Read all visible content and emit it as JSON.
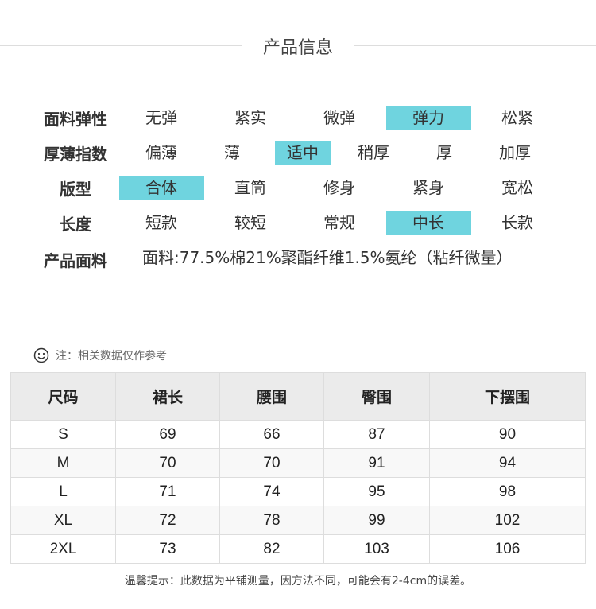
{
  "title": "产品信息",
  "attributes": [
    {
      "label": "面料弹性",
      "options": [
        "无弹",
        "紧实",
        "微弹",
        "弹力",
        "松紧"
      ],
      "selected": 3
    },
    {
      "label": "厚薄指数",
      "options": [
        "偏薄",
        "薄",
        "适中",
        "稍厚",
        "厚",
        "加厚"
      ],
      "selected": 2
    },
    {
      "label": "版型",
      "options": [
        "合体",
        "直筒",
        "修身",
        "紧身",
        "宽松"
      ],
      "selected": 0
    },
    {
      "label": "长度",
      "options": [
        "短款",
        "较短",
        "常规",
        "中长",
        "长款"
      ],
      "selected": 3
    }
  ],
  "fabric": {
    "label": "产品面料",
    "value": "面料:77.5%棉21%聚酯纤维1.5%氨纶（粘纤微量）"
  },
  "note": {
    "icon": "smiley-icon",
    "text": "注：相关数据仅作参考"
  },
  "table": {
    "headers": [
      "尺码",
      "裙长",
      "腰围",
      "臀围",
      "下摆围"
    ],
    "rows": [
      [
        "S",
        "69",
        "66",
        "87",
        "90"
      ],
      [
        "M",
        "70",
        "70",
        "91",
        "94"
      ],
      [
        "L",
        "71",
        "74",
        "95",
        "98"
      ],
      [
        "XL",
        "72",
        "78",
        "99",
        "102"
      ],
      [
        "2XL",
        "73",
        "82",
        "103",
        "106"
      ]
    ]
  },
  "footer": "温馨提示：此数据为平铺测量，因方法不同，可能会有2-4cm的误差。",
  "colors": {
    "highlight": "#6fd4df"
  }
}
